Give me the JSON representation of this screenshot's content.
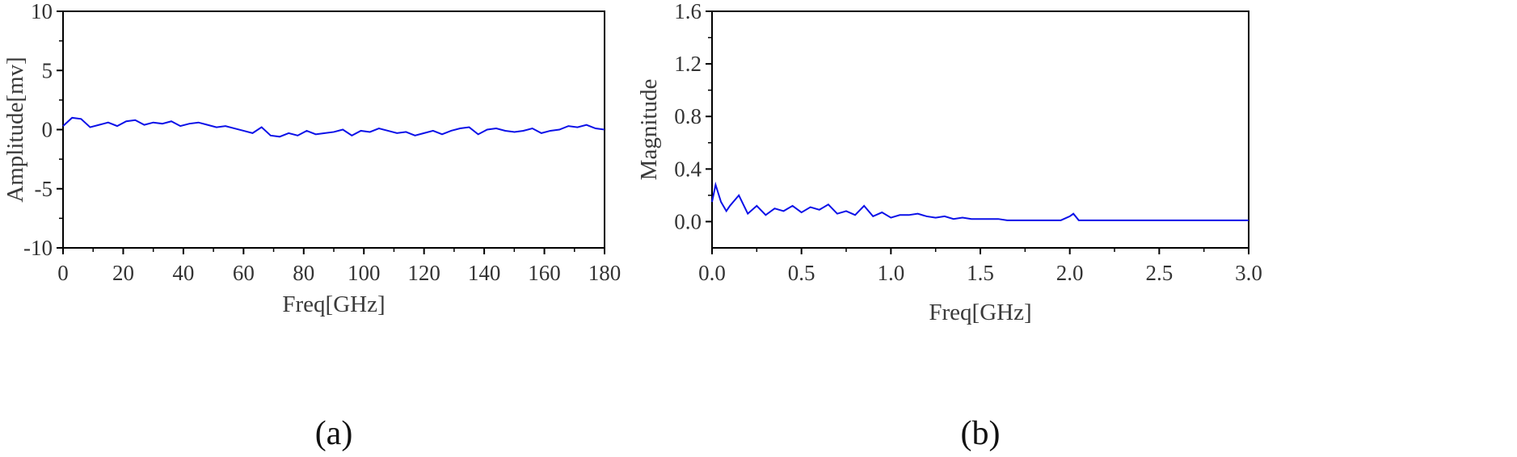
{
  "figure": {
    "panel_labels": [
      "(a)",
      "(b)"
    ]
  },
  "colors": {
    "series": "#0b10e8",
    "axes": "#000000",
    "text": "#333333"
  },
  "chart_data": [
    {
      "type": "line",
      "panel": "(a)",
      "xlabel": "Freq[GHz]",
      "ylabel": "Amplitude[mv]",
      "xlim": [
        0,
        180
      ],
      "ylim": [
        -10,
        10
      ],
      "xticks": [
        0,
        20,
        40,
        60,
        80,
        100,
        120,
        140,
        160,
        180
      ],
      "yticks": [
        -10,
        -5,
        0,
        5,
        10
      ],
      "grid": false,
      "legend": "none",
      "series": [
        {
          "x": [
            0,
            3,
            6,
            9,
            12,
            15,
            18,
            21,
            24,
            27,
            30,
            33,
            36,
            39,
            42,
            45,
            48,
            51,
            54,
            57,
            60,
            63,
            66,
            69,
            72,
            75,
            78,
            81,
            84,
            87,
            90,
            93,
            96,
            99,
            102,
            105,
            108,
            111,
            114,
            117,
            120,
            123,
            126,
            129,
            132,
            135,
            138,
            141,
            144,
            147,
            150,
            153,
            156,
            159,
            162,
            165,
            168,
            171,
            174,
            177,
            180
          ],
          "values": [
            0.3,
            1.0,
            0.9,
            0.2,
            0.4,
            0.6,
            0.3,
            0.7,
            0.8,
            0.4,
            0.6,
            0.5,
            0.7,
            0.3,
            0.5,
            0.6,
            0.4,
            0.2,
            0.3,
            0.1,
            -0.1,
            -0.3,
            0.2,
            -0.5,
            -0.6,
            -0.3,
            -0.5,
            -0.1,
            -0.4,
            -0.3,
            -0.2,
            0.0,
            -0.5,
            -0.1,
            -0.2,
            0.1,
            -0.1,
            -0.3,
            -0.2,
            -0.5,
            -0.3,
            -0.1,
            -0.4,
            -0.1,
            0.1,
            0.2,
            -0.4,
            0.0,
            0.1,
            -0.1,
            -0.2,
            -0.1,
            0.1,
            -0.3,
            -0.1,
            0.0,
            0.3,
            0.2,
            0.4,
            0.1,
            0.0
          ]
        }
      ]
    },
    {
      "type": "line",
      "panel": "(b)",
      "xlabel": "Freq[GHz]",
      "ylabel": "Magnitude",
      "xlim": [
        0,
        3
      ],
      "ylim": [
        -0.2,
        1.6
      ],
      "xticks": [
        0.0,
        0.5,
        1.0,
        1.5,
        2.0,
        2.5,
        3.0
      ],
      "xticklabels": [
        "0.0",
        "0.5",
        "1.0",
        "1.5",
        "2.0",
        "2.5",
        "3.0"
      ],
      "yticks": [
        0.0,
        0.4,
        0.8,
        1.2,
        1.6
      ],
      "yticklabels": [
        "0.0",
        "0.4",
        "0.8",
        "1.2",
        "1.6"
      ],
      "grid": false,
      "legend": "none",
      "series": [
        {
          "x": [
            0.0,
            0.02,
            0.05,
            0.08,
            0.1,
            0.15,
            0.2,
            0.25,
            0.3,
            0.35,
            0.4,
            0.45,
            0.5,
            0.55,
            0.6,
            0.65,
            0.7,
            0.75,
            0.8,
            0.85,
            0.9,
            0.95,
            1.0,
            1.05,
            1.1,
            1.15,
            1.2,
            1.25,
            1.3,
            1.35,
            1.4,
            1.45,
            1.5,
            1.55,
            1.6,
            1.65,
            1.7,
            1.75,
            1.8,
            1.85,
            1.9,
            1.95,
            2.0,
            2.02,
            2.05,
            2.1,
            2.2,
            2.3,
            2.4,
            2.5,
            2.6,
            2.7,
            2.8,
            2.9,
            3.0
          ],
          "values": [
            0.15,
            0.28,
            0.15,
            0.08,
            0.12,
            0.2,
            0.06,
            0.12,
            0.05,
            0.1,
            0.08,
            0.12,
            0.07,
            0.11,
            0.09,
            0.13,
            0.06,
            0.08,
            0.05,
            0.12,
            0.04,
            0.07,
            0.03,
            0.05,
            0.05,
            0.06,
            0.04,
            0.03,
            0.04,
            0.02,
            0.03,
            0.02,
            0.02,
            0.02,
            0.02,
            0.01,
            0.01,
            0.01,
            0.01,
            0.01,
            0.01,
            0.01,
            0.04,
            0.06,
            0.01,
            0.01,
            0.01,
            0.01,
            0.01,
            0.01,
            0.01,
            0.01,
            0.01,
            0.01,
            0.01
          ]
        }
      ]
    }
  ]
}
